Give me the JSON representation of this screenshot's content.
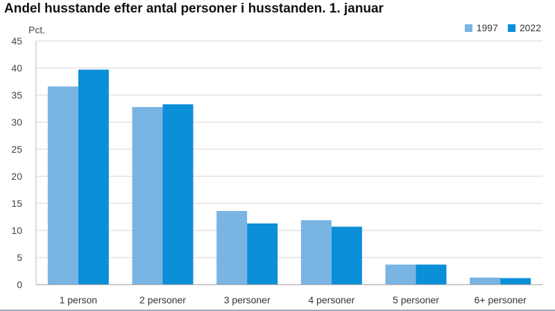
{
  "chart_data": {
    "type": "bar",
    "title": "Andel husstande efter antal personer i husstanden. 1. januar",
    "ylabel": "Pct.",
    "xlabel": "",
    "categories": [
      "1 person",
      "2 personer",
      "3 personer",
      "4 personer",
      "5 personer",
      "6+ personer"
    ],
    "series": [
      {
        "name": "1997",
        "color": "#79b4e3",
        "values": [
          36.6,
          32.8,
          13.6,
          11.9,
          3.7,
          1.3
        ]
      },
      {
        "name": "2022",
        "color": "#0a8fd8",
        "values": [
          39.7,
          33.3,
          11.3,
          10.7,
          3.7,
          1.2
        ]
      }
    ],
    "ylim": [
      0,
      45
    ],
    "yticks": [
      0,
      5,
      10,
      15,
      20,
      25,
      30,
      35,
      40,
      45
    ],
    "grid": true,
    "legend_position": "top-right"
  }
}
